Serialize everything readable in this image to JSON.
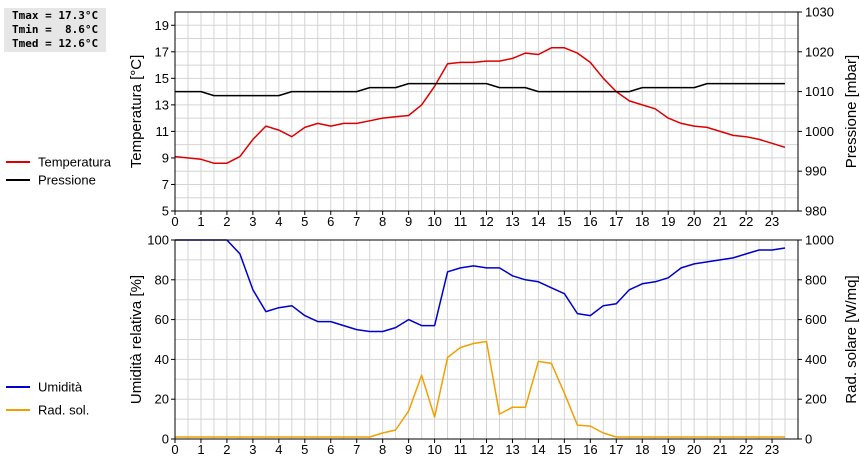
{
  "stats": {
    "tmax": "Tmax = 17.3°C",
    "tmin": "Tmin =  8.6°C",
    "tmed": "Tmed = 12.6°C"
  },
  "legend_top": [
    {
      "label": "Temperatura",
      "color": "#dd0000"
    },
    {
      "label": "Pressione",
      "color": "#000000"
    }
  ],
  "legend_bottom": [
    {
      "label": "Umidità",
      "color": "#0000cc"
    },
    {
      "label": "Rad. sol.",
      "color": "#f0a000"
    }
  ],
  "chart_data": [
    {
      "type": "line",
      "ylabel": "Temperatura [°C]",
      "y2label": "Pressione [mbar]",
      "xlim": [
        0,
        24
      ],
      "xticks": [
        0,
        1,
        2,
        3,
        4,
        5,
        6,
        7,
        8,
        9,
        10,
        11,
        12,
        13,
        14,
        15,
        16,
        17,
        18,
        19,
        20,
        21,
        22,
        23
      ],
      "ylim": [
        5,
        20
      ],
      "yticks": [
        5,
        7,
        9,
        11,
        13,
        15,
        17,
        19
      ],
      "y2lim": [
        980,
        1030
      ],
      "y2ticks": [
        980,
        990,
        1000,
        1010,
        1020,
        1030
      ],
      "grid": true,
      "series": [
        {
          "name": "Temperatura",
          "axis": "left",
          "color": "#dd0000",
          "x": [
            0,
            1,
            1.5,
            2,
            2.5,
            3,
            3.5,
            4,
            4.5,
            5,
            5.5,
            6,
            6.5,
            7,
            7.5,
            8,
            8.5,
            9,
            9.5,
            10,
            10.5,
            11,
            11.5,
            12,
            12.5,
            13,
            13.5,
            14,
            14.5,
            15,
            15.5,
            16,
            16.5,
            17,
            17.5,
            18,
            18.5,
            19,
            19.5,
            20,
            20.5,
            21,
            21.5,
            22,
            22.5,
            23,
            23.5
          ],
          "y": [
            9.1,
            8.9,
            8.6,
            8.6,
            9.1,
            10.4,
            11.4,
            11.1,
            10.6,
            11.3,
            11.6,
            11.4,
            11.6,
            11.6,
            11.8,
            12.0,
            12.1,
            12.2,
            13.0,
            14.4,
            16.1,
            16.2,
            16.2,
            16.3,
            16.3,
            16.5,
            16.9,
            16.8,
            17.3,
            17.3,
            16.9,
            16.2,
            15.0,
            14.0,
            13.3,
            13.0,
            12.7,
            12.0,
            11.6,
            11.4,
            11.3,
            11.0,
            10.7,
            10.6,
            10.4,
            10.1,
            9.8
          ]
        },
        {
          "name": "Pressione",
          "axis": "right",
          "color": "#000000",
          "x": [
            0,
            1,
            1.5,
            2,
            3,
            4,
            4.5,
            5,
            6,
            7,
            7.5,
            8,
            8.5,
            9,
            10,
            11,
            12,
            12.5,
            13,
            13.5,
            14,
            15,
            16,
            17,
            17.5,
            18,
            19,
            20,
            20.5,
            21,
            22,
            23,
            23.5
          ],
          "y": [
            1010,
            1010,
            1009,
            1009,
            1009,
            1009,
            1010,
            1010,
            1010,
            1010,
            1011,
            1011,
            1011,
            1012,
            1012,
            1012,
            1012,
            1011,
            1011,
            1011,
            1010,
            1010,
            1010,
            1010,
            1010,
            1011,
            1011,
            1011,
            1012,
            1012,
            1012,
            1012,
            1012
          ]
        }
      ]
    },
    {
      "type": "line",
      "ylabel": "Umidità relativa [%]",
      "y2label": "Rad. solare [W/mq]",
      "xlim": [
        0,
        24
      ],
      "xticks": [
        0,
        1,
        2,
        3,
        4,
        5,
        6,
        7,
        8,
        9,
        10,
        11,
        12,
        13,
        14,
        15,
        16,
        17,
        18,
        19,
        20,
        21,
        22,
        23
      ],
      "ylim": [
        0,
        100
      ],
      "yticks": [
        0,
        20,
        40,
        60,
        80,
        100
      ],
      "y2lim": [
        0,
        1000
      ],
      "y2ticks": [
        0,
        200,
        400,
        600,
        800,
        1000
      ],
      "grid": true,
      "series": [
        {
          "name": "Umidità",
          "axis": "left",
          "color": "#0000cc",
          "x": [
            0,
            0.5,
            1,
            1.5,
            2,
            2.5,
            3,
            3.5,
            4,
            4.5,
            5,
            5.5,
            6,
            6.5,
            7,
            7.5,
            8,
            8.5,
            9,
            9.5,
            10,
            10.5,
            11,
            11.5,
            12,
            12.5,
            13,
            13.5,
            14,
            14.5,
            15,
            15.5,
            16,
            16.5,
            17,
            17.5,
            18,
            18.5,
            19,
            19.5,
            20,
            20.5,
            21,
            21.5,
            22,
            22.5,
            23,
            23.5
          ],
          "y": [
            100,
            100,
            100,
            100,
            100,
            93,
            75,
            64,
            66,
            67,
            62,
            59,
            59,
            57,
            55,
            54,
            54,
            56,
            60,
            57,
            57,
            84,
            86,
            87,
            86,
            86,
            82,
            80,
            79,
            76,
            73,
            63,
            62,
            67,
            68,
            75,
            78,
            79,
            81,
            86,
            88,
            89,
            90,
            91,
            93,
            95,
            95,
            96
          ]
        },
        {
          "name": "Rad. sol.",
          "axis": "right",
          "color": "#f0a000",
          "x": [
            0,
            1,
            2,
            3,
            4,
            5,
            6,
            7,
            7.5,
            8,
            8.5,
            9,
            9.5,
            10,
            10.5,
            11,
            11.5,
            12,
            12.5,
            13,
            13.5,
            14,
            14.5,
            15,
            15.5,
            16,
            16.5,
            17,
            18,
            19,
            20,
            21,
            22,
            23,
            23.5
          ],
          "y": [
            10,
            10,
            10,
            10,
            10,
            10,
            10,
            10,
            10,
            30,
            45,
            140,
            320,
            110,
            410,
            460,
            480,
            490,
            125,
            160,
            160,
            390,
            380,
            230,
            70,
            65,
            30,
            10,
            10,
            10,
            10,
            10,
            10,
            10,
            10
          ]
        }
      ]
    }
  ]
}
